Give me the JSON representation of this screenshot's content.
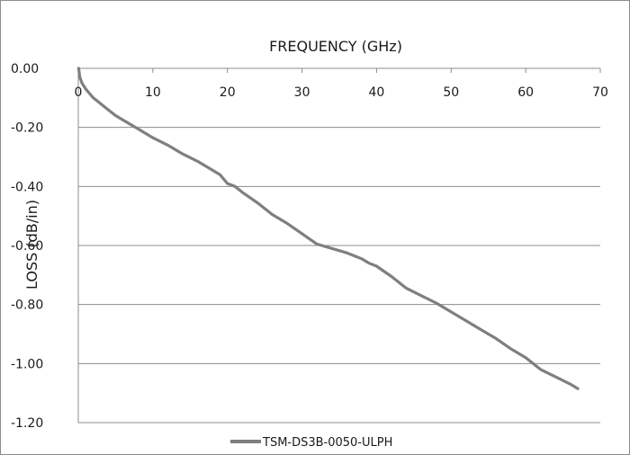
{
  "colors": {
    "series": "#7f7f7f",
    "grid": "#8c8c8c",
    "axis": "#8c8c8c",
    "text": "#1a1a1a"
  },
  "chart_data": {
    "type": "line",
    "title": "FREQUENCY (GHz)",
    "xlabel": "FREQUENCY (GHz)",
    "ylabel": "LOSS (dB/in)",
    "xlim": [
      0,
      70
    ],
    "ylim": [
      -1.2,
      0
    ],
    "x_ticks": [
      "0",
      "10",
      "20",
      "30",
      "40",
      "50",
      "60",
      "70"
    ],
    "y_ticks": [
      "0.00",
      "-0.20",
      "-0.40",
      "-0.60",
      "-0.80",
      "-1.00",
      "-1.20"
    ],
    "x_axis_position": "top",
    "grid": "horizontal",
    "legend": "bottom-center",
    "series": [
      {
        "name": "TSM-DS3B-0050-ULPH",
        "x": [
          0.05,
          0.2,
          0.5,
          1,
          1.5,
          2,
          3,
          4,
          5,
          6,
          7,
          8,
          9,
          10,
          12,
          14,
          16,
          18,
          19,
          20,
          21,
          22,
          24,
          26,
          28,
          30,
          32,
          34,
          36,
          37,
          38,
          39,
          40,
          42,
          44,
          46,
          48,
          50,
          52,
          54,
          56,
          58,
          60,
          62,
          64,
          66,
          67
        ],
        "y": [
          0.0,
          -0.03,
          -0.05,
          -0.07,
          -0.085,
          -0.1,
          -0.12,
          -0.14,
          -0.16,
          -0.175,
          -0.19,
          -0.205,
          -0.22,
          -0.235,
          -0.26,
          -0.29,
          -0.315,
          -0.345,
          -0.36,
          -0.39,
          -0.4,
          -0.42,
          -0.455,
          -0.495,
          -0.525,
          -0.56,
          -0.595,
          -0.61,
          -0.625,
          -0.635,
          -0.645,
          -0.66,
          -0.67,
          -0.705,
          -0.745,
          -0.77,
          -0.795,
          -0.825,
          -0.855,
          -0.885,
          -0.915,
          -0.95,
          -0.98,
          -1.02,
          -1.045,
          -1.07,
          -1.085
        ]
      }
    ]
  }
}
